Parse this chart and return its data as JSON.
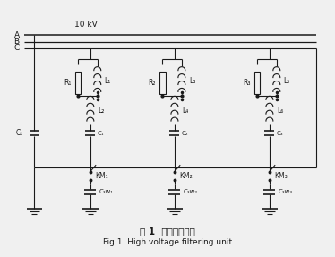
{
  "title_cn": "图 1  高压滤波单元",
  "title_en": "Fig.1  High voltage filtering unit",
  "voltage_label": "10 kV",
  "bus_labels": [
    "A",
    "B",
    "C"
  ],
  "R_labels": [
    "R₁",
    "R₂",
    "R₃"
  ],
  "L1_labels": [
    "L₁",
    "L₃",
    "L₅"
  ],
  "L2_labels": [
    "L₂",
    "L₄",
    "L₆"
  ],
  "C_labels": [
    "C₁",
    "C₂",
    "C₃"
  ],
  "C3w_labels": [
    "C₃w₁",
    "C₃w₂",
    "C₃w₃"
  ],
  "KM_labels": [
    "KM₁",
    "KM₂",
    "KM₃"
  ],
  "bg_color": "#f0f0f0",
  "line_color": "#1a1a1a",
  "box_color": "#cccccc"
}
